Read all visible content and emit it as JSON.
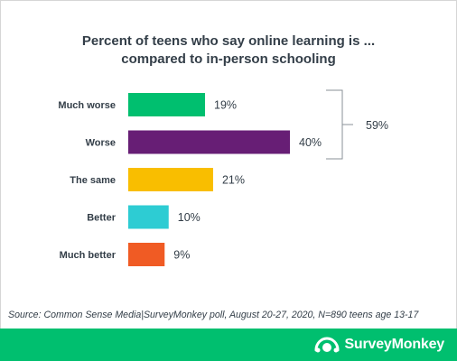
{
  "chart_data": {
    "type": "bar",
    "orientation": "horizontal",
    "title_line1": "Percent of teens who say online learning is ...",
    "title_line2": "compared to in-person schooling",
    "categories": [
      "Much worse",
      "Worse",
      "The same",
      "Better",
      "Much better"
    ],
    "values": [
      19,
      40,
      21,
      10,
      9
    ],
    "value_labels": [
      "19%",
      "40%",
      "21%",
      "10%",
      "9%"
    ],
    "colors": [
      "#00bf6f",
      "#671e75",
      "#f9be00",
      "#2dccd3",
      "#f05b24"
    ],
    "xlim": [
      0,
      40
    ],
    "grid": false,
    "bracket": {
      "categories": [
        "Much worse",
        "Worse"
      ],
      "label": "59%"
    }
  },
  "source": "Source: Common Sense Media|SurveyMonkey poll, August 20-27, 2020, N=890 teens age 13-17",
  "footer": {
    "logo_text": "SurveyMonkey",
    "logo_icon": "surveymonkey-logo-icon",
    "color": "#00bf6f"
  }
}
